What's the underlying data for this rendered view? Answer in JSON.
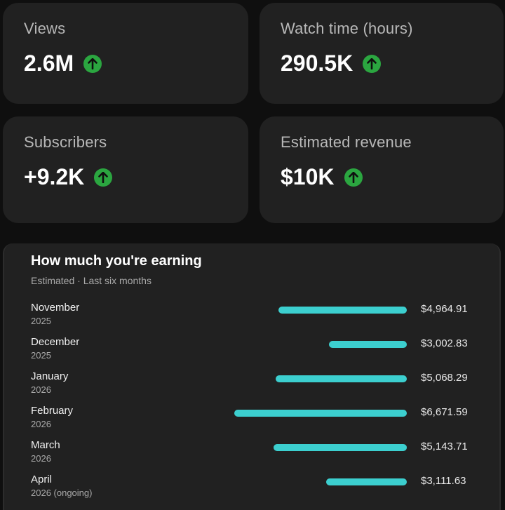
{
  "stats": {
    "views": {
      "label": "Views",
      "value": "2.6M",
      "trend": "up"
    },
    "watch_time": {
      "label": "Watch time (hours)",
      "value": "290.5K",
      "trend": "up"
    },
    "subscribers": {
      "label": "Subscribers",
      "value": "+9.2K",
      "trend": "up"
    },
    "revenue": {
      "label": "Estimated revenue",
      "value": "$10K",
      "trend": "up"
    }
  },
  "earning": {
    "title": "How much you're earning",
    "subtitle": "Estimated · Last six months",
    "rows": [
      {
        "month": "November",
        "year": "2025",
        "amount": "$4,964.91",
        "value": 4964.91
      },
      {
        "month": "December",
        "year": "2025",
        "amount": "$3,002.83",
        "value": 3002.83
      },
      {
        "month": "January",
        "year": "2026",
        "amount": "$5,068.29",
        "value": 5068.29
      },
      {
        "month": "February",
        "year": "2026",
        "amount": "$6,671.59",
        "value": 6671.59
      },
      {
        "month": "March",
        "year": "2026",
        "amount": "$5,143.71",
        "value": 5143.71
      },
      {
        "month": "April",
        "year": "2026 (ongoing)",
        "amount": "$3,111.63",
        "value": 3111.63
      }
    ]
  },
  "colors": {
    "background": "#0f0f0f",
    "card": "#212121",
    "trend_up": "#2ba640",
    "bar": "#3ccfcf"
  },
  "icons": {
    "trend_up": "arrow-up-circle-icon"
  }
}
